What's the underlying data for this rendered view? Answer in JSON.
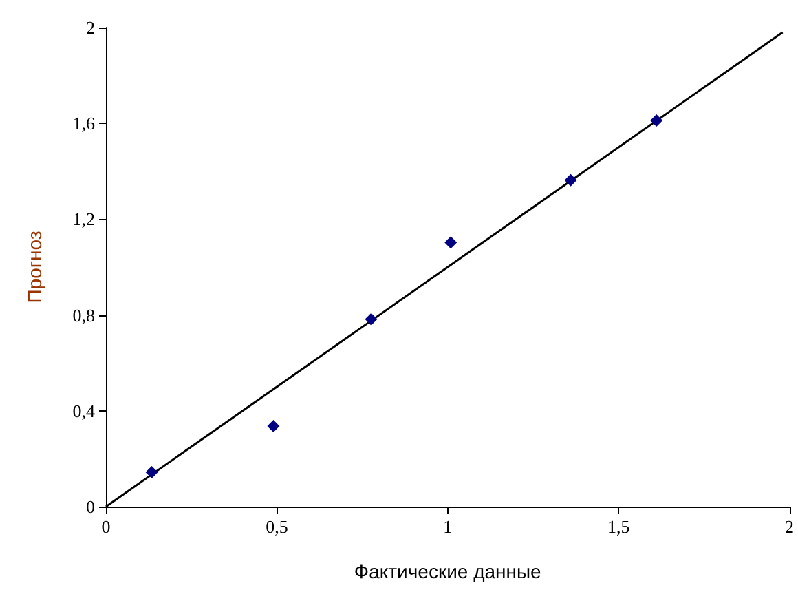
{
  "chart_data": {
    "type": "scatter",
    "xlabel": "Фактические данные",
    "ylabel": "Прогноз",
    "xlim": [
      0,
      2
    ],
    "ylim": [
      0,
      2
    ],
    "xticks": [
      0,
      {
        "value": 0.5,
        "label": "0,5"
      },
      1,
      {
        "value": 1.5,
        "label": "1,5"
      },
      2
    ],
    "yticks": [
      0,
      {
        "value": 0.4,
        "label": "0,4"
      },
      {
        "value": 0.8,
        "label": "0,8"
      },
      {
        "value": 1.2,
        "label": "1,2"
      },
      {
        "value": 1.6,
        "label": "1,6"
      },
      2
    ],
    "grid": false,
    "marker": "diamond",
    "series": [
      {
        "color": "#000080",
        "x": [
          0.134,
          0.49,
          0.776,
          1.009,
          1.36,
          1.611
        ],
        "values": [
          0.144,
          0.336,
          0.782,
          1.103,
          1.363,
          1.612
        ]
      },
      {
        "type": "line",
        "color": "#000000",
        "marker": "none",
        "line_style": "solid",
        "x": [
          0,
          1.98
        ],
        "values": [
          0,
          1.98
        ]
      }
    ]
  }
}
